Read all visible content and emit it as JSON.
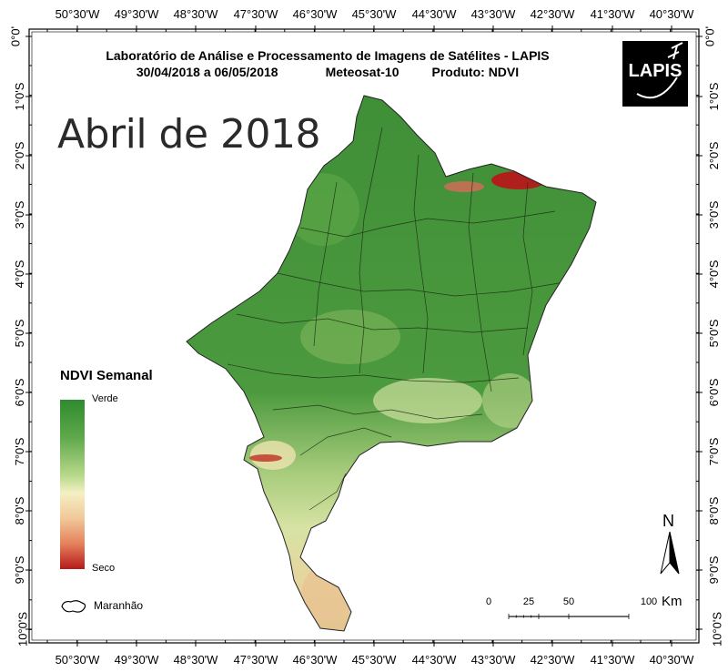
{
  "title": {
    "line1": "Laboratório de Análise e Processamento de Imagens de Satélites - LAPIS",
    "period": "30/04/2018  a 06/05/2018",
    "satellite": "Meteosat-10",
    "product": "Produto: NDVI"
  },
  "month_label": "Abril de 2018",
  "logo": {
    "text": "LAPIS"
  },
  "longitude_labels": [
    "50°30'W",
    "49°30'W",
    "48°30'W",
    "47°30'W",
    "46°30'W",
    "45°30'W",
    "44°30'W",
    "43°30'W",
    "42°30'W",
    "41°30'W",
    "40°30'W"
  ],
  "latitude_labels": [
    "0°0'",
    "1°0'S",
    "2°0'S",
    "3°0'S",
    "4°0'S",
    "5°0'S",
    "6°0'S",
    "7°0'S",
    "8°0'S",
    "9°0'S",
    "10°0'S"
  ],
  "legend": {
    "title": "NDVI Semanal",
    "top_label": "Verde",
    "bottom_label": "Seco",
    "state_label": "Maranhão",
    "colors": {
      "high": "#2f8a2f",
      "mid": "#f4f0c4",
      "low": "#b51a1a"
    }
  },
  "scale": {
    "ticks": [
      "0",
      "25",
      "50",
      "100"
    ],
    "unit": "Km"
  },
  "north": "N"
}
